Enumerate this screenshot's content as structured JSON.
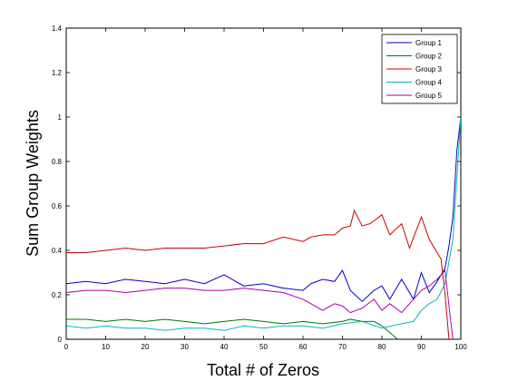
{
  "chart_data": {
    "type": "line",
    "title": "",
    "xlabel": "Total # of Zeros",
    "ylabel": "Sum Group Weights",
    "xlim": [
      0,
      100
    ],
    "ylim": [
      0,
      1.4
    ],
    "xticks": [
      0,
      10,
      20,
      30,
      40,
      50,
      60,
      70,
      80,
      90,
      100
    ],
    "yticks": [
      0,
      0.2,
      0.4,
      0.6,
      0.8,
      1,
      1.2,
      1.4
    ],
    "xtick_labels": [
      "0",
      "10",
      "20",
      "30",
      "40",
      "50",
      "60",
      "70",
      "80",
      "90",
      "100"
    ],
    "ytick_labels": [
      "0",
      "0.2",
      "0.4",
      "0.6",
      "0.8",
      "1",
      "1.2",
      "1.4"
    ],
    "grid": false,
    "legend_position": "top-right",
    "series": [
      {
        "name": "Group 1",
        "color": "#0000cc",
        "x": [
          0,
          5,
          10,
          15,
          20,
          25,
          30,
          35,
          40,
          45,
          50,
          55,
          60,
          62,
          65,
          68,
          70,
          72,
          75,
          78,
          80,
          82,
          85,
          88,
          90,
          92,
          94,
          96,
          97,
          98,
          99,
          100
        ],
        "y": [
          0.25,
          0.26,
          0.25,
          0.27,
          0.26,
          0.25,
          0.27,
          0.25,
          0.29,
          0.24,
          0.25,
          0.23,
          0.22,
          0.25,
          0.27,
          0.26,
          0.31,
          0.22,
          0.17,
          0.22,
          0.24,
          0.18,
          0.27,
          0.18,
          0.3,
          0.21,
          0.26,
          0.32,
          0.42,
          0.55,
          0.85,
          1.0
        ]
      },
      {
        "name": "Group 2",
        "color": "#007700",
        "x": [
          0,
          5,
          10,
          15,
          20,
          25,
          30,
          35,
          40,
          45,
          50,
          55,
          60,
          65,
          70,
          72,
          75,
          78,
          80,
          82,
          84
        ],
        "y": [
          0.09,
          0.09,
          0.08,
          0.09,
          0.08,
          0.09,
          0.08,
          0.07,
          0.08,
          0.09,
          0.08,
          0.07,
          0.08,
          0.07,
          0.08,
          0.09,
          0.08,
          0.08,
          0.06,
          0.03,
          0.0
        ]
      },
      {
        "name": "Group 3",
        "color": "#cc0000",
        "x": [
          0,
          5,
          10,
          15,
          20,
          25,
          30,
          35,
          40,
          45,
          50,
          55,
          60,
          62,
          65,
          68,
          70,
          72,
          73,
          75,
          77,
          80,
          82,
          85,
          87,
          90,
          92,
          94,
          95,
          96,
          97
        ],
        "y": [
          0.39,
          0.39,
          0.4,
          0.41,
          0.4,
          0.41,
          0.41,
          0.41,
          0.42,
          0.43,
          0.43,
          0.46,
          0.44,
          0.46,
          0.47,
          0.47,
          0.5,
          0.51,
          0.58,
          0.51,
          0.52,
          0.56,
          0.47,
          0.52,
          0.41,
          0.55,
          0.45,
          0.39,
          0.36,
          0.2,
          0.0
        ]
      },
      {
        "name": "Group 4",
        "color": "#00bbbb",
        "x": [
          0,
          5,
          10,
          15,
          20,
          25,
          30,
          35,
          40,
          45,
          50,
          55,
          60,
          65,
          70,
          75,
          80,
          85,
          88,
          90,
          92,
          94,
          96,
          98,
          100
        ],
        "y": [
          0.06,
          0.05,
          0.06,
          0.05,
          0.05,
          0.04,
          0.05,
          0.05,
          0.04,
          0.06,
          0.05,
          0.06,
          0.06,
          0.05,
          0.07,
          0.08,
          0.05,
          0.07,
          0.08,
          0.13,
          0.16,
          0.18,
          0.25,
          0.45,
          1.0
        ]
      },
      {
        "name": "Group 5",
        "color": "#aa00aa",
        "x": [
          0,
          5,
          10,
          15,
          20,
          25,
          30,
          35,
          40,
          45,
          50,
          55,
          60,
          62,
          65,
          68,
          70,
          72,
          75,
          78,
          80,
          82,
          85,
          88,
          90,
          92,
          94,
          96,
          97,
          98
        ],
        "y": [
          0.21,
          0.22,
          0.22,
          0.21,
          0.22,
          0.23,
          0.23,
          0.22,
          0.22,
          0.23,
          0.22,
          0.21,
          0.18,
          0.16,
          0.13,
          0.16,
          0.15,
          0.12,
          0.14,
          0.18,
          0.13,
          0.16,
          0.12,
          0.18,
          0.22,
          0.24,
          0.27,
          0.31,
          0.15,
          0.0
        ]
      }
    ]
  }
}
